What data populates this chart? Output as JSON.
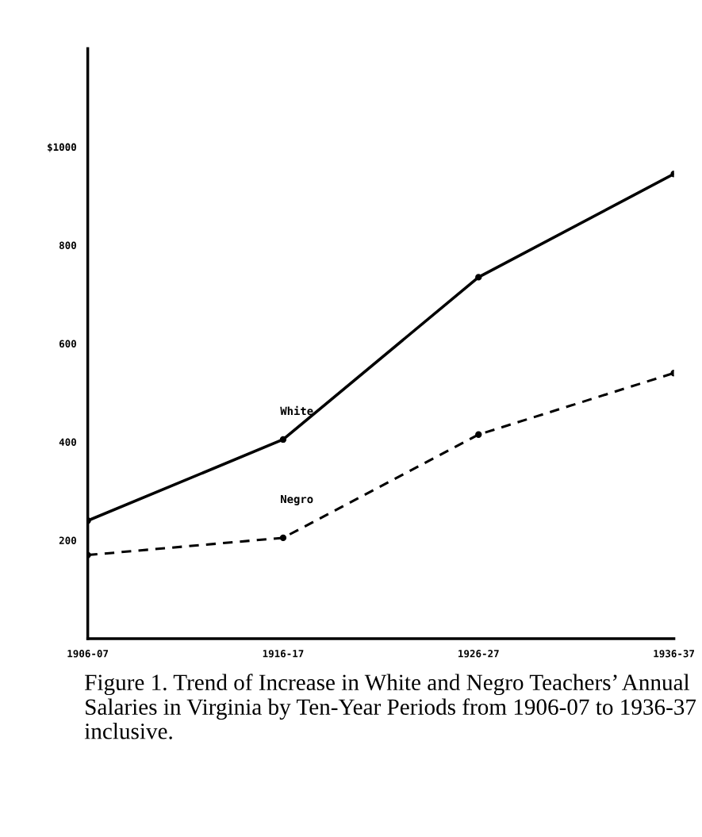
{
  "chart_data": {
    "type": "line",
    "title": "Figure 1. Trend of Increase in White and Negro Teachers’ Annual Salaries in Virginia by Ten-Year Periods from 1906-07 to 1936-37 inclusive.",
    "categories": [
      "1906-07",
      "1916-17",
      "1926-27",
      "1936-37"
    ],
    "series": [
      {
        "name": "White",
        "color": "#000000",
        "line_style": "solid",
        "values": [
          240,
          405,
          735,
          945
        ]
      },
      {
        "name": "Negro",
        "color": "#000000",
        "line_style": "dashed",
        "values": [
          170,
          205,
          415,
          540
        ]
      }
    ],
    "ylim": [
      0,
      1200
    ],
    "yticks": [
      200,
      400,
      600,
      800,
      {
        "value": 1000,
        "label": "$1000"
      }
    ],
    "marker": "circle",
    "grid": false,
    "legend": false
  }
}
